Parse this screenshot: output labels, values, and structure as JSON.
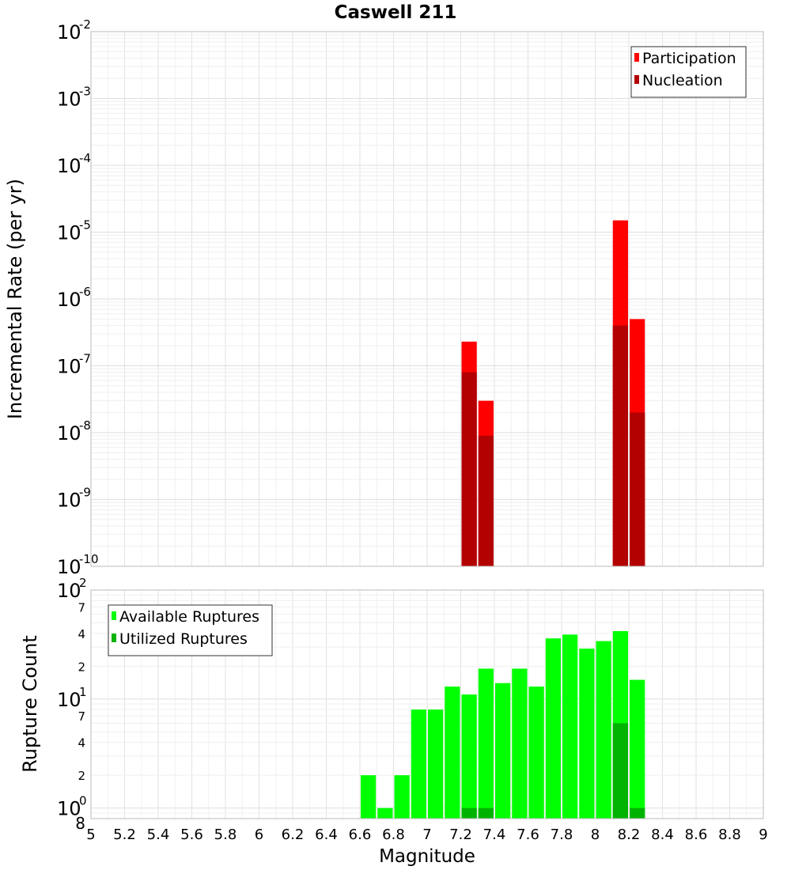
{
  "chart_data": {
    "title": "Caswell 211",
    "xlabel": "Magnitude",
    "x_range": [
      5,
      9
    ],
    "x_ticks": [
      "5",
      "5.2",
      "5.4",
      "5.6",
      "5.8",
      "6",
      "6.2",
      "6.4",
      "6.6",
      "6.8",
      "7",
      "7.2",
      "7.4",
      "7.6",
      "7.8",
      "8",
      "8.2",
      "8.4",
      "8.6",
      "8.8",
      "9"
    ],
    "bin_width": 0.1,
    "panels": [
      {
        "type": "bar",
        "ylabel": "Incremental Rate (per yr)",
        "y_scale": "log",
        "ylim": [
          1e-10,
          0.01
        ],
        "y_ticks": [
          {
            "base": "10",
            "exp": "-10"
          },
          {
            "base": "10",
            "exp": "-9"
          },
          {
            "base": "10",
            "exp": "-8"
          },
          {
            "base": "10",
            "exp": "-7"
          },
          {
            "base": "10",
            "exp": "-6"
          },
          {
            "base": "10",
            "exp": "-5"
          },
          {
            "base": "10",
            "exp": "-4"
          },
          {
            "base": "10",
            "exp": "-3"
          },
          {
            "base": "10",
            "exp": "-2"
          }
        ],
        "legend": {
          "placement": "top-right",
          "entries": [
            {
              "label": "Participation",
              "color": "#ff0000"
            },
            {
              "label": "Nucleation",
              "color": "#b30000"
            }
          ]
        },
        "series": [
          {
            "name": "Participation",
            "color": "#ff0000",
            "x": [
              7.25,
              7.35,
              8.15,
              8.25
            ],
            "values": [
              2.3e-07,
              3e-08,
              1.5e-05,
              5e-07
            ]
          },
          {
            "name": "Nucleation",
            "color": "#b30000",
            "x": [
              7.25,
              7.35,
              8.15,
              8.25
            ],
            "values": [
              8e-08,
              9e-09,
              4e-07,
              2e-08
            ]
          }
        ]
      },
      {
        "type": "bar",
        "ylabel": "Rupture Count",
        "y_scale": "log",
        "ylim": [
          0.8,
          100
        ],
        "y_ticks": [
          {
            "value": 1,
            "base": "10",
            "exp": "0"
          },
          {
            "value": 10,
            "base": "10",
            "exp": "1"
          },
          {
            "value": 100,
            "base": "10",
            "exp": "2"
          }
        ],
        "y_minor_ticks": [
          {
            "value": 0.8,
            "label": "8"
          },
          {
            "value": 2,
            "label": "2"
          },
          {
            "value": 4,
            "label": "4"
          },
          {
            "value": 7,
            "label": "7"
          },
          {
            "value": 20,
            "label": "2"
          },
          {
            "value": 40,
            "label": "4"
          },
          {
            "value": 70,
            "label": "7"
          }
        ],
        "legend": {
          "placement": "top-left",
          "entries": [
            {
              "label": "Available Ruptures",
              "color": "#00ff00"
            },
            {
              "label": "Utilized Ruptures",
              "color": "#00b300"
            }
          ]
        },
        "series": [
          {
            "name": "Available Ruptures",
            "color": "#00ff00",
            "x": [
              6.65,
              6.75,
              6.85,
              6.95,
              7.05,
              7.15,
              7.25,
              7.35,
              7.45,
              7.55,
              7.65,
              7.75,
              7.85,
              7.95,
              8.05,
              8.15,
              8.25
            ],
            "values": [
              2,
              1,
              2,
              8,
              8,
              13,
              11,
              19,
              14,
              19,
              13,
              36,
              39,
              29,
              34,
              42,
              15
            ]
          },
          {
            "name": "Utilized Ruptures",
            "color": "#00b300",
            "x": [
              7.25,
              7.35,
              8.15,
              8.25
            ],
            "values": [
              1,
              1,
              6,
              1
            ]
          }
        ]
      }
    ]
  }
}
